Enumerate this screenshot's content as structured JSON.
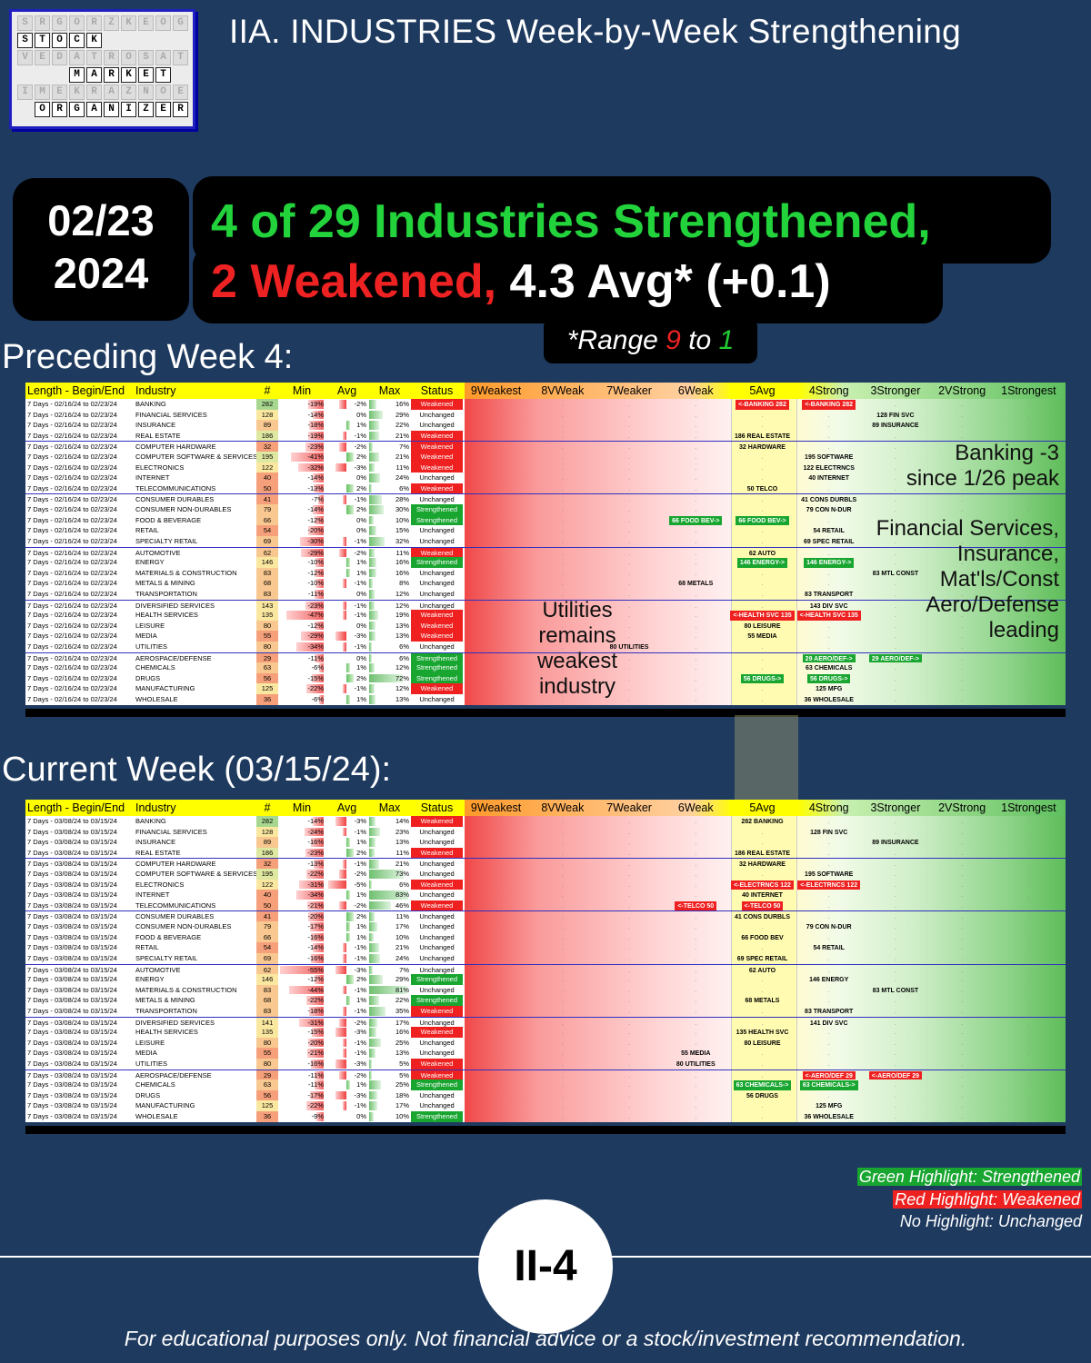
{
  "logo": {
    "rows": [
      [
        "S",
        "T",
        "O",
        "C",
        "K"
      ],
      [
        "M",
        "A",
        "R",
        "K",
        "E",
        "T"
      ],
      [
        "O",
        "R",
        "G",
        "A",
        "N",
        "I",
        "Z",
        "E",
        "R"
      ]
    ]
  },
  "header_title": "IIA. INDUSTRIES Week-by-Week Strengthening",
  "date": {
    "line1": "02/23",
    "line2": "2024"
  },
  "headline": {
    "line1": "4 of 29 Industries Strengthened,",
    "line2_red": "2 Weakened,",
    "line2_white": "4.3 Avg* (+0.1)"
  },
  "range_note": {
    "prefix": "*Range ",
    "hi": "9",
    "mid": " to ",
    "lo": "1"
  },
  "colors": {
    "bg": "#1e3a5f",
    "green": "#22d33b",
    "red": "#ee2222",
    "header_yellow": "#ffff00"
  },
  "columns": [
    "Length - Begin/End",
    "Industry",
    "#",
    "Min",
    "Avg",
    "Max",
    "Status",
    "9Weakest",
    "8VWeak",
    "7Weaker",
    "6Weak",
    "5Avg",
    "4Strong",
    "3Stronger",
    "2VStrong",
    "1Strongest"
  ],
  "preceding": {
    "label": "Preceding Week 4:",
    "period": "7 Days - 02/16/24 to 02/23/24",
    "rows": [
      {
        "ind": "BANKING",
        "n": "282",
        "min": "-19%",
        "avg": "-2%",
        "max": "16%",
        "st": "Weakened",
        "z": {
          "5": [
            "<-BANKING 282",
            "r"
          ],
          "4": [
            "<-BANKING 282",
            "r"
          ]
        }
      },
      {
        "ind": "FINANCIAL SERVICES",
        "n": "128",
        "min": "-14%",
        "avg": "0%",
        "max": "29%",
        "st": "Unchanged",
        "z": {
          "3": [
            "128 FIN SVC",
            "n"
          ]
        }
      },
      {
        "ind": "INSURANCE",
        "n": "89",
        "min": "-18%",
        "avg": "1%",
        "max": "22%",
        "st": "Unchanged",
        "z": {
          "3": [
            "89 INSURANCE",
            "n"
          ]
        }
      },
      {
        "ind": "REAL ESTATE",
        "n": "186",
        "min": "-19%",
        "avg": "-1%",
        "max": "21%",
        "st": "Weakened",
        "z": {
          "5": [
            "186 REAL ESTATE",
            "n"
          ]
        }
      },
      {
        "ind": "COMPUTER HARDWARE",
        "n": "32",
        "min": "-23%",
        "avg": "-2%",
        "max": "7%",
        "st": "Weakened",
        "z": {
          "5": [
            "32 HARDWARE",
            "n"
          ]
        }
      },
      {
        "ind": "COMPUTER SOFTWARE & SERVICES",
        "n": "195",
        "min": "-41%",
        "avg": "2%",
        "max": "21%",
        "st": "Weakened",
        "z": {
          "4": [
            "195 SOFTWARE",
            "n"
          ]
        }
      },
      {
        "ind": "ELECTRONICS",
        "n": "122",
        "min": "-32%",
        "avg": "-3%",
        "max": "11%",
        "st": "Weakened",
        "z": {
          "4": [
            "122 ELECTRNCS",
            "n"
          ]
        }
      },
      {
        "ind": "INTERNET",
        "n": "40",
        "min": "-14%",
        "avg": "0%",
        "max": "24%",
        "st": "Unchanged",
        "z": {
          "4": [
            "40 INTERNET",
            "n"
          ]
        }
      },
      {
        "ind": "TELECOMMUNICATIONS",
        "n": "50",
        "min": "-13%",
        "avg": "2%",
        "max": "6%",
        "st": "Weakened",
        "z": {
          "5": [
            "50 TELCO",
            "n"
          ]
        }
      },
      {
        "ind": "CONSUMER DURABLES",
        "n": "41",
        "min": "-7%",
        "avg": "-1%",
        "max": "28%",
        "st": "Unchanged",
        "z": {
          "4": [
            "41 CONS DURBLS",
            "n"
          ]
        }
      },
      {
        "ind": "CONSUMER NON-DURABLES",
        "n": "79",
        "min": "-14%",
        "avg": "2%",
        "max": "30%",
        "st": "Strengthened",
        "z": {
          "4": [
            "79 CON N-DUR",
            "n"
          ]
        }
      },
      {
        "ind": "FOOD & BEVERAGE",
        "n": "66",
        "min": "-12%",
        "avg": "0%",
        "max": "10%",
        "st": "Strengthened",
        "z": {
          "6": [
            "66 FOOD BEV->",
            "g"
          ],
          "5": [
            "66 FOOD BEV->",
            "g"
          ]
        }
      },
      {
        "ind": "RETAIL",
        "n": "54",
        "min": "-20%",
        "avg": "0%",
        "max": "15%",
        "st": "Unchanged",
        "z": {
          "4": [
            "54 RETAIL",
            "n"
          ]
        }
      },
      {
        "ind": "SPECIALTY RETAIL",
        "n": "69",
        "min": "-30%",
        "avg": "-1%",
        "max": "32%",
        "st": "Unchanged",
        "z": {
          "4": [
            "69 SPEC RETAIL",
            "n"
          ]
        }
      },
      {
        "ind": "AUTOMOTIVE",
        "n": "62",
        "min": "-29%",
        "avg": "-2%",
        "max": "11%",
        "st": "Weakened",
        "z": {
          "5": [
            "62 AUTO",
            "n"
          ]
        }
      },
      {
        "ind": "ENERGY",
        "n": "146",
        "min": "-10%",
        "avg": "1%",
        "max": "16%",
        "st": "Strengthened",
        "z": {
          "5": [
            "146 ENERGY->",
            "g"
          ],
          "4": [
            "146 ENERGY->",
            "g"
          ]
        }
      },
      {
        "ind": "MATERIALS & CONSTRUCTION",
        "n": "83",
        "min": "-12%",
        "avg": "1%",
        "max": "16%",
        "st": "Unchanged",
        "z": {
          "3": [
            "83 MTL CONST",
            "n"
          ]
        }
      },
      {
        "ind": "METALS & MINING",
        "n": "68",
        "min": "-10%",
        "avg": "-1%",
        "max": "8%",
        "st": "Unchanged",
        "z": {
          "6": [
            "68 METALS",
            "n"
          ]
        }
      },
      {
        "ind": "TRANSPORTATION",
        "n": "83",
        "min": "-11%",
        "avg": "0%",
        "max": "12%",
        "st": "Unchanged",
        "z": {
          "4": [
            "83 TRANSPORT",
            "n"
          ]
        }
      },
      {
        "ind": "DIVERSIFIED SERVICES",
        "n": "143",
        "min": "-23%",
        "avg": "-1%",
        "max": "12%",
        "st": "Unchanged",
        "z": {
          "4": [
            "143 DIV SVC",
            "n"
          ]
        }
      },
      {
        "ind": "HEALTH SERVICES",
        "n": "135",
        "min": "-47%",
        "avg": "-1%",
        "max": "19%",
        "st": "Weakened",
        "z": {
          "5": [
            "<-HEALTH SVC 135",
            "r"
          ],
          "4": [
            "<-HEALTH SVC 135",
            "r"
          ]
        }
      },
      {
        "ind": "LEISURE",
        "n": "80",
        "min": "-12%",
        "avg": "0%",
        "max": "13%",
        "st": "Weakened",
        "z": {
          "5": [
            "80 LEISURE",
            "n"
          ]
        }
      },
      {
        "ind": "MEDIA",
        "n": "55",
        "min": "-29%",
        "avg": "-3%",
        "max": "13%",
        "st": "Weakened",
        "z": {
          "5": [
            "55 MEDIA",
            "n"
          ]
        }
      },
      {
        "ind": "UTILITIES",
        "n": "80",
        "min": "-34%",
        "avg": "-1%",
        "max": "6%",
        "st": "Unchanged",
        "z": {
          "7": [
            "80 UTILITIES",
            "n"
          ]
        }
      },
      {
        "ind": "AEROSPACE/DEFENSE",
        "n": "29",
        "min": "-11%",
        "avg": "0%",
        "max": "6%",
        "st": "Strengthened",
        "z": {
          "4": [
            "29 AERO/DEF->",
            "g"
          ],
          "3": [
            "29 AERO/DEF->",
            "g"
          ]
        }
      },
      {
        "ind": "CHEMICALS",
        "n": "63",
        "min": "-6%",
        "avg": "1%",
        "max": "12%",
        "st": "Strengthened",
        "z": {
          "4": [
            "63 CHEMICALS",
            "n"
          ]
        }
      },
      {
        "ind": "DRUGS",
        "n": "56",
        "min": "-15%",
        "avg": "2%",
        "max": "72%",
        "st": "Strengthened",
        "z": {
          "5": [
            "56 DRUGS->",
            "g"
          ],
          "4": [
            "56 DRUGS->",
            "g"
          ]
        }
      },
      {
        "ind": "MANUFACTURING",
        "n": "125",
        "min": "-22%",
        "avg": "-1%",
        "max": "12%",
        "st": "Weakened",
        "z": {
          "4": [
            "125 MFG",
            "n"
          ]
        }
      },
      {
        "ind": "WHOLESALE",
        "n": "36",
        "min": "-6%",
        "avg": "1%",
        "max": "13%",
        "st": "Unchanged",
        "z": {
          "4": [
            "36 WHOLESALE",
            "n"
          ]
        }
      }
    ]
  },
  "current": {
    "label": "Current Week (03/15/24):",
    "period": "7 Days - 03/08/24 to 03/15/24",
    "rows": [
      {
        "ind": "BANKING",
        "n": "282",
        "min": "-14%",
        "avg": "-3%",
        "max": "14%",
        "st": "Weakened",
        "z": {
          "5": [
            "282 BANKING",
            "n"
          ]
        }
      },
      {
        "ind": "FINANCIAL SERVICES",
        "n": "128",
        "min": "-24%",
        "avg": "-1%",
        "max": "23%",
        "st": "Unchanged",
        "z": {
          "4": [
            "128 FIN SVC",
            "n"
          ]
        }
      },
      {
        "ind": "INSURANCE",
        "n": "89",
        "min": "-16%",
        "avg": "1%",
        "max": "13%",
        "st": "Unchanged",
        "z": {
          "3": [
            "89 INSURANCE",
            "n"
          ]
        }
      },
      {
        "ind": "REAL ESTATE",
        "n": "186",
        "min": "-23%",
        "avg": "2%",
        "max": "11%",
        "st": "Weakened",
        "z": {
          "5": [
            "186 REAL ESTATE",
            "n"
          ]
        }
      },
      {
        "ind": "COMPUTER HARDWARE",
        "n": "32",
        "min": "-13%",
        "avg": "-1%",
        "max": "21%",
        "st": "Unchanged",
        "z": {
          "5": [
            "32 HARDWARE",
            "n"
          ]
        }
      },
      {
        "ind": "COMPUTER SOFTWARE & SERVICES",
        "n": "195",
        "min": "-22%",
        "avg": "-2%",
        "max": "73%",
        "st": "Unchanged",
        "z": {
          "4": [
            "195 SOFTWARE",
            "n"
          ]
        }
      },
      {
        "ind": "ELECTRONICS",
        "n": "122",
        "min": "-31%",
        "avg": "-5%",
        "max": "6%",
        "st": "Weakened",
        "z": {
          "5": [
            "<-ELECTRNCS 122",
            "r"
          ],
          "4": [
            "<-ELECTRNCS 122",
            "r"
          ]
        }
      },
      {
        "ind": "INTERNET",
        "n": "40",
        "min": "-34%",
        "avg": "1%",
        "max": "83%",
        "st": "Unchanged",
        "z": {
          "5": [
            "40 INTERNET",
            "n"
          ]
        }
      },
      {
        "ind": "TELECOMMUNICATIONS",
        "n": "50",
        "min": "-21%",
        "avg": "-2%",
        "max": "46%",
        "st": "Weakened",
        "z": {
          "6": [
            "<-TELCO 50",
            "r"
          ],
          "5": [
            "<-TELCO 50",
            "r"
          ]
        }
      },
      {
        "ind": "CONSUMER DURABLES",
        "n": "41",
        "min": "-20%",
        "avg": "2%",
        "max": "11%",
        "st": "Unchanged",
        "z": {
          "5": [
            "41 CONS DURBLS",
            "n"
          ]
        }
      },
      {
        "ind": "CONSUMER NON-DURABLES",
        "n": "79",
        "min": "-17%",
        "avg": "1%",
        "max": "17%",
        "st": "Unchanged",
        "z": {
          "4": [
            "79 CON N-DUR",
            "n"
          ]
        }
      },
      {
        "ind": "FOOD & BEVERAGE",
        "n": "66",
        "min": "-16%",
        "avg": "1%",
        "max": "10%",
        "st": "Unchanged",
        "z": {
          "5": [
            "66 FOOD BEV",
            "n"
          ]
        }
      },
      {
        "ind": "RETAIL",
        "n": "54",
        "min": "-14%",
        "avg": "-1%",
        "max": "21%",
        "st": "Unchanged",
        "z": {
          "4": [
            "54 RETAIL",
            "n"
          ]
        }
      },
      {
        "ind": "SPECIALTY RETAIL",
        "n": "69",
        "min": "-16%",
        "avg": "-1%",
        "max": "24%",
        "st": "Unchanged",
        "z": {
          "5": [
            "69 SPEC RETAIL",
            "n"
          ]
        }
      },
      {
        "ind": "AUTOMOTIVE",
        "n": "62",
        "min": "-55%",
        "avg": "-3%",
        "max": "7%",
        "st": "Unchanged",
        "z": {
          "5": [
            "62 AUTO",
            "n"
          ]
        }
      },
      {
        "ind": "ENERGY",
        "n": "146",
        "min": "-12%",
        "avg": "2%",
        "max": "29%",
        "st": "Strengthened",
        "z": {
          "4": [
            "146 ENERGY",
            "n"
          ]
        }
      },
      {
        "ind": "MATERIALS & CONSTRUCTION",
        "n": "83",
        "min": "-44%",
        "avg": "-1%",
        "max": "81%",
        "st": "Unchanged",
        "z": {
          "3": [
            "83 MTL CONST",
            "n"
          ]
        }
      },
      {
        "ind": "METALS & MINING",
        "n": "68",
        "min": "-22%",
        "avg": "1%",
        "max": "22%",
        "st": "Strengthened",
        "z": {
          "5": [
            "68 METALS",
            "n"
          ]
        }
      },
      {
        "ind": "TRANSPORTATION",
        "n": "83",
        "min": "-18%",
        "avg": "-1%",
        "max": "35%",
        "st": "Weakened",
        "z": {
          "4": [
            "83 TRANSPORT",
            "n"
          ]
        }
      },
      {
        "ind": "DIVERSIFIED SERVICES",
        "n": "141",
        "min": "-31%",
        "avg": "-2%",
        "max": "17%",
        "st": "Unchanged",
        "z": {
          "4": [
            "141 DIV SVC",
            "n"
          ]
        }
      },
      {
        "ind": "HEALTH SERVICES",
        "n": "135",
        "min": "-15%",
        "avg": "-3%",
        "max": "16%",
        "st": "Weakened",
        "z": {
          "5": [
            "135 HEALTH SVC",
            "n"
          ]
        }
      },
      {
        "ind": "LEISURE",
        "n": "80",
        "min": "-20%",
        "avg": "-1%",
        "max": "25%",
        "st": "Unchanged",
        "z": {
          "5": [
            "80 LEISURE",
            "n"
          ]
        }
      },
      {
        "ind": "MEDIA",
        "n": "55",
        "min": "-21%",
        "avg": "-1%",
        "max": "13%",
        "st": "Unchanged",
        "z": {
          "6": [
            "55 MEDIA",
            "n"
          ]
        }
      },
      {
        "ind": "UTILITIES",
        "n": "80",
        "min": "-16%",
        "avg": "-3%",
        "max": "5%",
        "st": "Weakened",
        "z": {
          "6": [
            "80 UTILITIES",
            "n"
          ]
        }
      },
      {
        "ind": "AEROSPACE/DEFENSE",
        "n": "29",
        "min": "-11%",
        "avg": "-2%",
        "max": "5%",
        "st": "Weakened",
        "z": {
          "4": [
            "<-AERO/DEF 29",
            "r"
          ],
          "3": [
            "<-AERO/DEF 29",
            "r"
          ]
        }
      },
      {
        "ind": "CHEMICALS",
        "n": "63",
        "min": "-11%",
        "avg": "1%",
        "max": "25%",
        "st": "Strengthened",
        "z": {
          "5": [
            "63 CHEMICALS->",
            "g"
          ],
          "4": [
            "63 CHEMICALS->",
            "g"
          ]
        }
      },
      {
        "ind": "DRUGS",
        "n": "56",
        "min": "-17%",
        "avg": "-3%",
        "max": "18%",
        "st": "Unchanged",
        "z": {
          "5": [
            "56 DRUGS",
            "n"
          ]
        }
      },
      {
        "ind": "MANUFACTURING",
        "n": "125",
        "min": "-22%",
        "avg": "-1%",
        "max": "17%",
        "st": "Unchanged",
        "z": {
          "4": [
            "125 MFG",
            "n"
          ]
        }
      },
      {
        "ind": "WHOLESALE",
        "n": "36",
        "min": "-9%",
        "avg": "0%",
        "max": "10%",
        "st": "Strengthened",
        "z": {
          "4": [
            "36 WHOLESALE",
            "n"
          ]
        }
      }
    ]
  },
  "annotations": {
    "banking": [
      "Banking -3",
      "since 1/26 peak"
    ],
    "leaders": [
      "Financial Services,",
      "Insurance,",
      "Mat'ls/Const",
      "Aero/Defense",
      "leading"
    ],
    "utilities": [
      "Utilities",
      "remains",
      "weakest",
      "industry"
    ]
  },
  "legend": {
    "green": "Green Highlight: Strengthened",
    "red": "Red Highlight: Weakened",
    "none": "No Highlight: Unchanged"
  },
  "page_id": "II-4",
  "disclaimer": "For educational purposes only. Not financial advice or a stock/investment recommendation."
}
